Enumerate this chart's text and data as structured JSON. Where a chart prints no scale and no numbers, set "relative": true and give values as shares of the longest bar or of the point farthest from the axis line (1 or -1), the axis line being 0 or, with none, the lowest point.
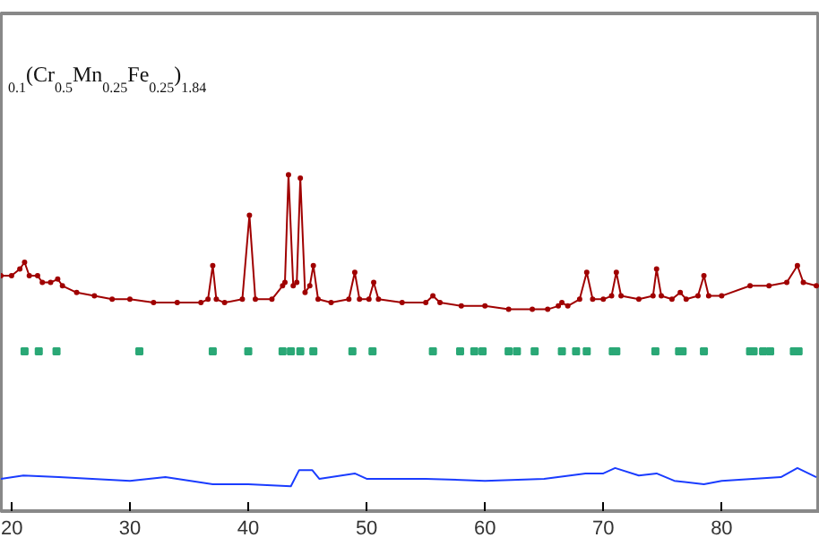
{
  "chart_data": {
    "type": "line",
    "relative": true,
    "xlim": [
      19.1,
      88.3
    ],
    "xticks": [
      20,
      30,
      40,
      50,
      60,
      70,
      80
    ],
    "grid": false,
    "annotations": [
      "$_{0.1}$(Cr$_{0.5}$Mn$_{0.25}$Fe$_{0.25}$)$_{1.84}$"
    ],
    "series": [
      {
        "marker": "circle",
        "color": "#a00000",
        "x": [
          19.1,
          20.0,
          20.7,
          21.1,
          21.5,
          22.2,
          22.6,
          23.3,
          23.9,
          24.3,
          25.5,
          27,
          28.5,
          30,
          32,
          34,
          36,
          36.6,
          37.0,
          37.3,
          38,
          39.5,
          40.1,
          40.6,
          42,
          42.9,
          43.1,
          43.4,
          43.8,
          44.1,
          44.4,
          44.8,
          45.2,
          45.5,
          45.9,
          47,
          48.5,
          49.0,
          49.4,
          50.2,
          50.6,
          51.0,
          53,
          55,
          55.6,
          56.2,
          58,
          60,
          62,
          64,
          65.3,
          66.2,
          66.5,
          67,
          68,
          68.6,
          69.1,
          70,
          70.7,
          71.1,
          71.5,
          73,
          74.2,
          74.5,
          74.9,
          75.8,
          76.5,
          77,
          78.0,
          78.5,
          78.9,
          80,
          82.4,
          84,
          85.5,
          86.4,
          86.9,
          88
        ],
        "values": [
          0.7,
          0.7,
          0.72,
          0.74,
          0.7,
          0.7,
          0.68,
          0.68,
          0.69,
          0.67,
          0.65,
          0.64,
          0.63,
          0.63,
          0.62,
          0.62,
          0.62,
          0.63,
          0.73,
          0.63,
          0.62,
          0.63,
          0.88,
          0.63,
          0.63,
          0.67,
          0.68,
          1.0,
          0.67,
          0.68,
          0.99,
          0.65,
          0.67,
          0.73,
          0.63,
          0.62,
          0.63,
          0.71,
          0.63,
          0.63,
          0.68,
          0.63,
          0.62,
          0.62,
          0.64,
          0.62,
          0.61,
          0.61,
          0.6,
          0.6,
          0.6,
          0.61,
          0.62,
          0.61,
          0.63,
          0.71,
          0.63,
          0.63,
          0.64,
          0.71,
          0.64,
          0.63,
          0.64,
          0.72,
          0.64,
          0.63,
          0.65,
          0.63,
          0.64,
          0.7,
          0.64,
          0.64,
          0.67,
          0.67,
          0.68,
          0.73,
          0.68,
          0.67
        ]
      },
      {
        "type": "scatter",
        "marker": "square",
        "color": "#2aa876",
        "x": [
          21.1,
          22.3,
          23.8,
          30.8,
          37.0,
          40.0,
          42.9,
          43.6,
          44.4,
          45.5,
          48.8,
          50.5,
          55.6,
          57.9,
          59.1,
          59.8,
          62.0,
          62.7,
          64.2,
          66.5,
          67.7,
          68.6,
          70.8,
          71.1,
          74.4,
          76.4,
          76.7,
          78.5,
          82.4,
          82.7,
          83.5,
          84.1,
          86.1,
          86.5
        ],
        "values": [
          0.475,
          0.475,
          0.475,
          0.475,
          0.475,
          0.475,
          0.475,
          0.475,
          0.475,
          0.475,
          0.475,
          0.475,
          0.475,
          0.475,
          0.475,
          0.475,
          0.475,
          0.475,
          0.475,
          0.475,
          0.475,
          0.475,
          0.475,
          0.475,
          0.475,
          0.475,
          0.475,
          0.475,
          0.475,
          0.475,
          0.475,
          0.475,
          0.475,
          0.475
        ]
      },
      {
        "type": "line",
        "color": "#1a3cff",
        "x": [
          19.1,
          21,
          24,
          30,
          33,
          37,
          40,
          43.6,
          44.3,
          45.4,
          46,
          49,
          50,
          55,
          60,
          65,
          68.5,
          70,
          71,
          73,
          74.5,
          76,
          78.5,
          80,
          85,
          86.4,
          88
        ],
        "values": [
          0.096,
          0.106,
          0.101,
          0.09,
          0.101,
          0.08,
          0.08,
          0.074,
          0.122,
          0.122,
          0.096,
          0.112,
          0.096,
          0.096,
          0.09,
          0.096,
          0.112,
          0.112,
          0.128,
          0.106,
          0.112,
          0.09,
          0.08,
          0.09,
          0.101,
          0.128,
          0.101
        ]
      }
    ]
  }
}
